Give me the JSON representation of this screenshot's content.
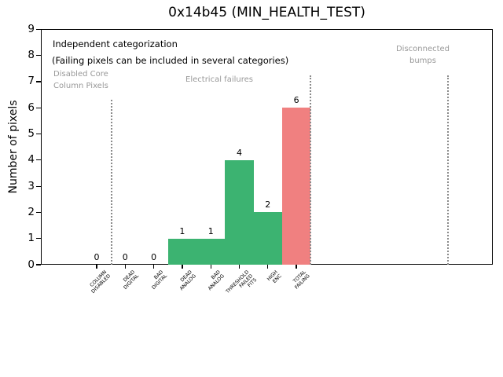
{
  "chart_data": {
    "type": "bar",
    "title": "0x14b45 (MIN_HEALTH_TEST)",
    "ylabel": "Number of pixels",
    "xlabel": "",
    "ylim": [
      0,
      9
    ],
    "yticks": [
      0,
      1,
      2,
      3,
      4,
      5,
      6,
      7,
      8,
      9
    ],
    "grid": false,
    "legend": null,
    "categories": [
      "COLUMN\nDISABLED",
      "DEAD\nDIGITAL",
      "BAD\nDIGITAL",
      "DEAD\nANALOG",
      "BAD\nANALOG",
      "THRESHOLD\nFAILED\nFITS",
      "HIGH\nENC",
      "TOTAL\nFAILING"
    ],
    "values": [
      0,
      0,
      0,
      1,
      1,
      4,
      2,
      6
    ],
    "bar_colors": [
      "green",
      "green",
      "green",
      "green",
      "green",
      "green",
      "green",
      "red"
    ],
    "colors": {
      "green": "#3CB371",
      "red": "#F08080",
      "separator": "#8A8A8A",
      "section_label": "#999999",
      "text": "#000000"
    },
    "annotations": [
      {
        "id": "note-independent-categorization",
        "text": "Independent categorization",
        "color": "#000000"
      },
      {
        "id": "note-failing-pixels",
        "text": "(Failing pixels can be included in several categories)",
        "color": "#000000"
      },
      {
        "id": "section-label-disabled-core",
        "text": "Disabled Core\nColumn Pixels",
        "color": "#999999"
      },
      {
        "id": "section-label-electrical-failures",
        "text": "Electrical failures",
        "color": "#999999"
      },
      {
        "id": "section-label-disconnected-bumps",
        "text": "Disconnected\nbumps",
        "color": "#999999"
      }
    ],
    "separator_count": 3
  }
}
